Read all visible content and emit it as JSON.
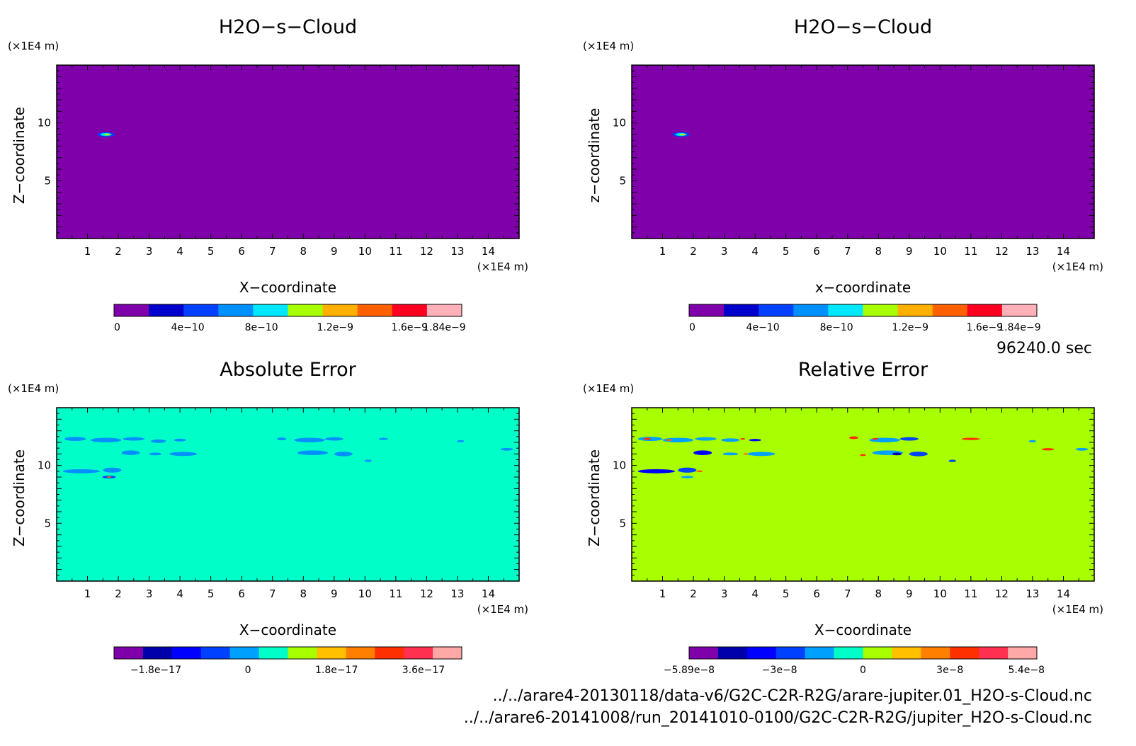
{
  "time_label": "96240.0 sec",
  "footer_files": [
    "../../arare4-20130118/data-v6/G2C-C2R-R2G/arare-jupiter.01_H2O-s-Cloud.nc",
    "../../arare6-20141008/run_20141010-0100/G2C-C2R-R2G/jupiter_H2O-s-Cloud.nc"
  ],
  "chart_data": [
    {
      "type": "heatmap",
      "title": "H2O−s−Cloud",
      "xlabel": "X−coordinate",
      "ylabel": "Z−coordinate",
      "x_unit": "(×1E4 m)",
      "y_unit": "(×1E4 m)",
      "xlim": [
        0,
        15
      ],
      "ylim": [
        0,
        15
      ],
      "xticks": [
        "1",
        "2",
        "3",
        "4",
        "5",
        "6",
        "7",
        "8",
        "9",
        "10",
        "11",
        "12",
        "13",
        "14"
      ],
      "yticks": [
        "5",
        "10"
      ],
      "background_color": "#7f00aa",
      "features": [
        {
          "x": 1.6,
          "z": 9.0,
          "rx": 0.28,
          "rz": 0.2,
          "color": "#0040ff"
        },
        {
          "x": 1.6,
          "z": 9.0,
          "rx": 0.18,
          "rz": 0.13,
          "color": "#00e0e0"
        },
        {
          "x": 1.65,
          "z": 9.0,
          "rx": 0.1,
          "rz": 0.08,
          "color": "#a8ff00"
        },
        {
          "x": 1.7,
          "z": 9.0,
          "rx": 0.04,
          "rz": 0.04,
          "color": "#ff9900"
        }
      ],
      "colorbar": {
        "colors": [
          "#7f00aa",
          "#0000cc",
          "#0040ff",
          "#0090ff",
          "#00e8ff",
          "#a8ff00",
          "#ffb000",
          "#ff6000",
          "#ff0020",
          "#ffb0b8"
        ],
        "tick_labels": [
          "0",
          "4e−10",
          "8e−10",
          "1.2e−9",
          "1.6e−9",
          "1.84e−9"
        ]
      }
    },
    {
      "type": "heatmap",
      "title": "H2O−s−Cloud",
      "xlabel": "x−coordinate",
      "ylabel": "z−coordinate",
      "x_unit": "(×1E4 m)",
      "y_unit": "(×1E4 m)",
      "xlim": [
        0,
        15
      ],
      "ylim": [
        0,
        15
      ],
      "xticks": [
        "1",
        "2",
        "3",
        "4",
        "5",
        "6",
        "7",
        "8",
        "9",
        "10",
        "11",
        "12",
        "13",
        "14"
      ],
      "yticks": [
        "5",
        "10"
      ],
      "background_color": "#7f00aa",
      "features": [
        {
          "x": 1.6,
          "z": 9.0,
          "rx": 0.28,
          "rz": 0.2,
          "color": "#0040ff"
        },
        {
          "x": 1.6,
          "z": 9.0,
          "rx": 0.18,
          "rz": 0.13,
          "color": "#00e0e0"
        },
        {
          "x": 1.65,
          "z": 9.0,
          "rx": 0.1,
          "rz": 0.08,
          "color": "#a8ff00"
        },
        {
          "x": 1.7,
          "z": 9.0,
          "rx": 0.04,
          "rz": 0.04,
          "color": "#ff9900"
        }
      ],
      "colorbar": {
        "colors": [
          "#7f00aa",
          "#0000cc",
          "#0040ff",
          "#0090ff",
          "#00e8ff",
          "#a8ff00",
          "#ffb000",
          "#ff6000",
          "#ff0020",
          "#ffb0b8"
        ],
        "tick_labels": [
          "0",
          "4e−10",
          "8e−10",
          "1.2e−9",
          "1.6e−9",
          "1.84e−9"
        ]
      }
    },
    {
      "type": "heatmap",
      "title": "Absolute Error",
      "xlabel": "X−coordinate",
      "ylabel": "Z−coordinate",
      "x_unit": "(×1E4 m)",
      "y_unit": "(×1E4 m)",
      "xlim": [
        0,
        15
      ],
      "ylim": [
        0,
        15
      ],
      "xticks": [
        "1",
        "2",
        "3",
        "4",
        "5",
        "6",
        "7",
        "8",
        "9",
        "10",
        "11",
        "12",
        "13",
        "14"
      ],
      "yticks": [
        "5",
        "10"
      ],
      "background_color": "#00ffc8",
      "features": [
        {
          "x": 0.6,
          "z": 12.3,
          "rx": 0.35,
          "rz": 0.18,
          "color": "#0090ff"
        },
        {
          "x": 1.6,
          "z": 12.2,
          "rx": 0.5,
          "rz": 0.2,
          "color": "#0090ff"
        },
        {
          "x": 2.5,
          "z": 12.3,
          "rx": 0.35,
          "rz": 0.15,
          "color": "#0090ff"
        },
        {
          "x": 3.3,
          "z": 12.1,
          "rx": 0.25,
          "rz": 0.15,
          "color": "#0090ff"
        },
        {
          "x": 4.0,
          "z": 12.2,
          "rx": 0.2,
          "rz": 0.12,
          "color": "#0090ff"
        },
        {
          "x": 2.4,
          "z": 11.1,
          "rx": 0.3,
          "rz": 0.2,
          "color": "#0090ff"
        },
        {
          "x": 3.2,
          "z": 11.0,
          "rx": 0.2,
          "rz": 0.12,
          "color": "#0090ff"
        },
        {
          "x": 4.1,
          "z": 11.0,
          "rx": 0.45,
          "rz": 0.18,
          "color": "#0090ff"
        },
        {
          "x": 0.8,
          "z": 9.5,
          "rx": 0.6,
          "rz": 0.18,
          "color": "#0090ff"
        },
        {
          "x": 1.8,
          "z": 9.6,
          "rx": 0.3,
          "rz": 0.22,
          "color": "#0090ff"
        },
        {
          "x": 1.7,
          "z": 9.0,
          "rx": 0.22,
          "rz": 0.12,
          "color": "#0040ff"
        },
        {
          "x": 1.7,
          "z": 9.0,
          "rx": 0.08,
          "rz": 0.06,
          "color": "#ff6000"
        },
        {
          "x": 7.3,
          "z": 12.3,
          "rx": 0.15,
          "rz": 0.12,
          "color": "#0090ff"
        },
        {
          "x": 8.2,
          "z": 12.2,
          "rx": 0.5,
          "rz": 0.2,
          "color": "#0090ff"
        },
        {
          "x": 9.0,
          "z": 12.3,
          "rx": 0.3,
          "rz": 0.15,
          "color": "#0090ff"
        },
        {
          "x": 8.3,
          "z": 11.1,
          "rx": 0.5,
          "rz": 0.2,
          "color": "#0090ff"
        },
        {
          "x": 9.3,
          "z": 11.0,
          "rx": 0.3,
          "rz": 0.2,
          "color": "#0090ff"
        },
        {
          "x": 10.1,
          "z": 10.4,
          "rx": 0.12,
          "rz": 0.1,
          "color": "#0090ff"
        },
        {
          "x": 10.6,
          "z": 12.3,
          "rx": 0.15,
          "rz": 0.1,
          "color": "#0090ff"
        },
        {
          "x": 13.1,
          "z": 12.1,
          "rx": 0.12,
          "rz": 0.1,
          "color": "#0090ff"
        },
        {
          "x": 14.6,
          "z": 11.4,
          "rx": 0.2,
          "rz": 0.12,
          "color": "#0090ff"
        }
      ],
      "colorbar": {
        "colors": [
          "#7f00aa",
          "#0000aa",
          "#0000ff",
          "#0040ff",
          "#00a0ff",
          "#00ffc8",
          "#a8ff00",
          "#ffc000",
          "#ff8000",
          "#ff3000",
          "#ff3050",
          "#ffa8a8"
        ],
        "tick_labels": [
          "−1.8e−17",
          "0",
          "1.8e−17",
          "3.6e−17"
        ]
      }
    },
    {
      "type": "heatmap",
      "title": "Relative Error",
      "xlabel": "X−coordinate",
      "ylabel": "Z−coordinate",
      "x_unit": "(×1E4 m)",
      "y_unit": "(×1E4 m)",
      "xlim": [
        0,
        15
      ],
      "ylim": [
        0,
        15
      ],
      "xticks": [
        "1",
        "2",
        "3",
        "4",
        "5",
        "6",
        "7",
        "8",
        "9",
        "10",
        "11",
        "12",
        "13",
        "14"
      ],
      "yticks": [
        "5",
        "10"
      ],
      "background_color": "#a8ff00",
      "features": [
        {
          "x": 0.6,
          "z": 12.3,
          "rx": 0.4,
          "rz": 0.18,
          "color": "#00a0ff"
        },
        {
          "x": 0.5,
          "z": 12.3,
          "rx": 0.12,
          "rz": 0.1,
          "color": "#ff3000"
        },
        {
          "x": 1.5,
          "z": 12.2,
          "rx": 0.5,
          "rz": 0.2,
          "color": "#00a0ff"
        },
        {
          "x": 1.2,
          "z": 12.2,
          "rx": 0.1,
          "rz": 0.08,
          "color": "#ff6000"
        },
        {
          "x": 2.4,
          "z": 12.3,
          "rx": 0.35,
          "rz": 0.15,
          "color": "#00a0ff"
        },
        {
          "x": 3.2,
          "z": 12.2,
          "rx": 0.3,
          "rz": 0.15,
          "color": "#00a0ff"
        },
        {
          "x": 3.6,
          "z": 12.3,
          "rx": 0.08,
          "rz": 0.07,
          "color": "#ff3000"
        },
        {
          "x": 4.0,
          "z": 12.2,
          "rx": 0.2,
          "rz": 0.1,
          "color": "#0000ff"
        },
        {
          "x": 2.3,
          "z": 11.1,
          "rx": 0.3,
          "rz": 0.2,
          "color": "#0000ff"
        },
        {
          "x": 3.2,
          "z": 11.0,
          "rx": 0.25,
          "rz": 0.12,
          "color": "#00a0ff"
        },
        {
          "x": 4.2,
          "z": 11.0,
          "rx": 0.45,
          "rz": 0.18,
          "color": "#00a0ff"
        },
        {
          "x": 3.7,
          "z": 11.0,
          "rx": 0.08,
          "rz": 0.07,
          "color": "#ff6000"
        },
        {
          "x": 0.8,
          "z": 9.5,
          "rx": 0.6,
          "rz": 0.18,
          "color": "#0000ff"
        },
        {
          "x": 1.8,
          "z": 9.6,
          "rx": 0.3,
          "rz": 0.22,
          "color": "#0040ff"
        },
        {
          "x": 2.2,
          "z": 9.5,
          "rx": 0.1,
          "rz": 0.08,
          "color": "#ff6000"
        },
        {
          "x": 1.8,
          "z": 9.0,
          "rx": 0.2,
          "rz": 0.1,
          "color": "#00a0ff"
        },
        {
          "x": 7.2,
          "z": 12.4,
          "rx": 0.15,
          "rz": 0.12,
          "color": "#ff3000"
        },
        {
          "x": 8.2,
          "z": 12.2,
          "rx": 0.5,
          "rz": 0.2,
          "color": "#00a0ff"
        },
        {
          "x": 7.9,
          "z": 12.3,
          "rx": 0.1,
          "rz": 0.08,
          "color": "#ff3000"
        },
        {
          "x": 9.0,
          "z": 12.3,
          "rx": 0.3,
          "rz": 0.15,
          "color": "#0040ff"
        },
        {
          "x": 8.3,
          "z": 11.1,
          "rx": 0.5,
          "rz": 0.2,
          "color": "#00a0ff"
        },
        {
          "x": 8.6,
          "z": 11.0,
          "rx": 0.15,
          "rz": 0.12,
          "color": "#0000aa"
        },
        {
          "x": 9.3,
          "z": 11.0,
          "rx": 0.3,
          "rz": 0.2,
          "color": "#0040ff"
        },
        {
          "x": 7.5,
          "z": 10.9,
          "rx": 0.1,
          "rz": 0.08,
          "color": "#ff3000"
        },
        {
          "x": 10.4,
          "z": 10.4,
          "rx": 0.12,
          "rz": 0.1,
          "color": "#0040ff"
        },
        {
          "x": 11.0,
          "z": 12.3,
          "rx": 0.3,
          "rz": 0.1,
          "color": "#ff3000"
        },
        {
          "x": 13.0,
          "z": 12.1,
          "rx": 0.12,
          "rz": 0.1,
          "color": "#00a0ff"
        },
        {
          "x": 13.5,
          "z": 11.4,
          "rx": 0.2,
          "rz": 0.1,
          "color": "#ff3000"
        },
        {
          "x": 14.6,
          "z": 11.4,
          "rx": 0.2,
          "rz": 0.12,
          "color": "#00a0ff"
        }
      ],
      "colorbar": {
        "colors": [
          "#7f00aa",
          "#0000aa",
          "#0000ff",
          "#0040ff",
          "#00a0ff",
          "#00ffc8",
          "#a8ff00",
          "#ffc000",
          "#ff8000",
          "#ff3000",
          "#ff3050",
          "#ffa8a8"
        ],
        "tick_labels": [
          "−5.89e−8",
          "−3e−8",
          "0",
          "3e−8",
          "5.4e−8"
        ]
      }
    }
  ]
}
